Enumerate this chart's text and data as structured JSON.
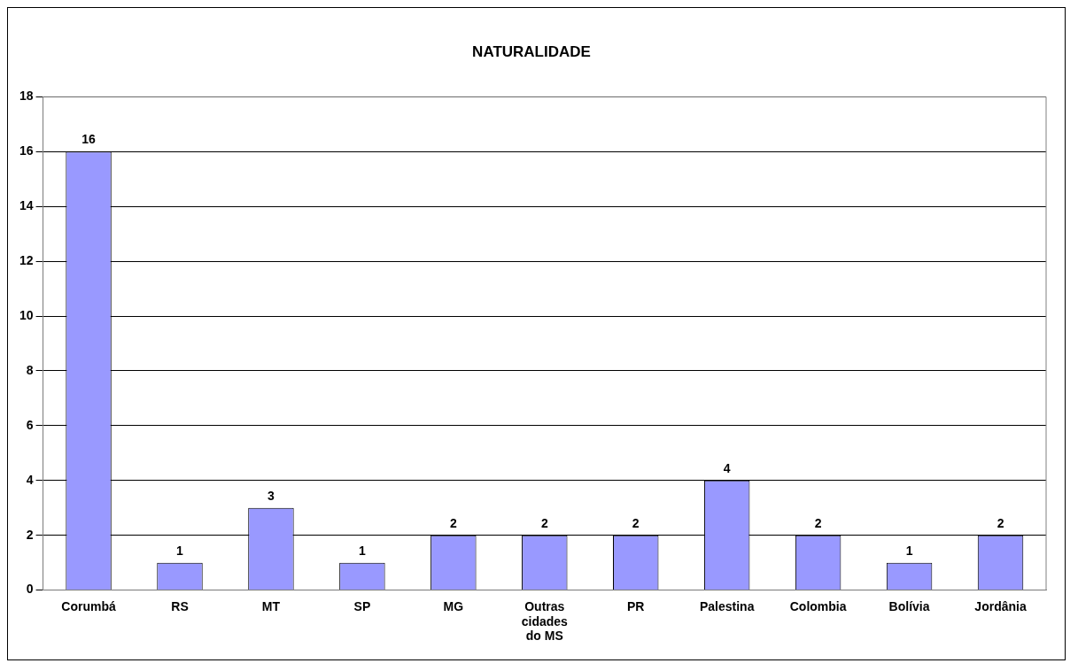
{
  "chart_data": {
    "type": "bar",
    "title": "NATURALIDADE",
    "categories": [
      "Corumbá",
      "RS",
      "MT",
      "SP",
      "MG",
      "Outras cidades do MS",
      "PR",
      "Palestina",
      "Colombia",
      "Bolívia",
      "Jordânia"
    ],
    "values": [
      16,
      1,
      3,
      1,
      2,
      2,
      2,
      4,
      2,
      1,
      2
    ],
    "color": "#9999ff",
    "ylim": [
      0,
      18
    ],
    "yticks": [
      0,
      2,
      4,
      6,
      8,
      10,
      12,
      14,
      16,
      18
    ],
    "grid": "y",
    "legend": false,
    "data_labels": true
  }
}
